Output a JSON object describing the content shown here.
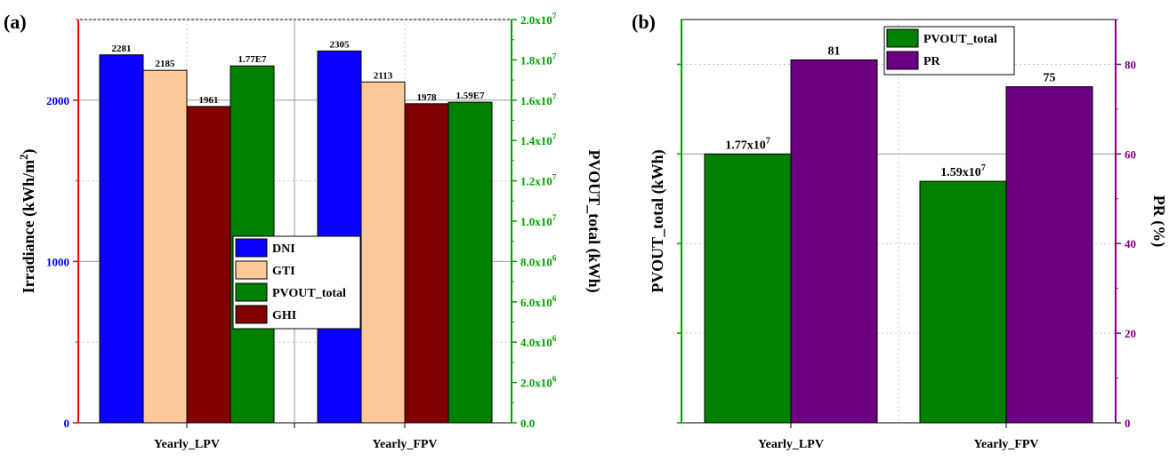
{
  "panels": [
    {
      "label": "(a)",
      "chart_data": {
        "type": "bar",
        "categories": [
          "Yearly_LPV",
          "Yearly_FPV"
        ],
        "series": [
          {
            "name": "DNI",
            "axis": "left",
            "values": [
              2281,
              2305
            ],
            "labels": [
              "2281",
              "2305"
            ],
            "color": "#0b00ff"
          },
          {
            "name": "GTI",
            "axis": "left",
            "values": [
              2185,
              2113
            ],
            "labels": [
              "2185",
              "2113"
            ],
            "color": "#fdc89a"
          },
          {
            "name": "GHI",
            "axis": "left",
            "values": [
              1961,
              1978
            ],
            "labels": [
              "1961",
              "1978"
            ],
            "color": "#800000"
          },
          {
            "name": "PVOUT_total",
            "axis": "right",
            "values": [
              17700000,
              15900000
            ],
            "labels": [
              "1.77E7",
              "1.59E7"
            ],
            "color": "#007f00"
          }
        ],
        "legend_order": [
          "DNI",
          "GTI",
          "PVOUT_total",
          "GHI"
        ],
        "legend_position": "center",
        "ylabel_left": "Irradiance (kWh/m²)",
        "ylabel_right": "PVOUT_total (kWh)",
        "ylim_left": [
          0,
          2500
        ],
        "ylim_right": [
          0,
          20000000
        ],
        "yticks_left": [
          "0",
          "1000",
          "2000"
        ],
        "yticks_right": [
          {
            "m": "0.0",
            "e": ""
          },
          {
            "m": "2.0x10",
            "e": "6"
          },
          {
            "m": "4.0x10",
            "e": "6"
          },
          {
            "m": "6.0x10",
            "e": "6"
          },
          {
            "m": "8.0x10",
            "e": "6"
          },
          {
            "m": "1.0x10",
            "e": "7"
          },
          {
            "m": "1.2x10",
            "e": "7"
          },
          {
            "m": "1.4x10",
            "e": "7"
          },
          {
            "m": "1.6x10",
            "e": "7"
          },
          {
            "m": "1.8x10",
            "e": "7"
          },
          {
            "m": "2.0x10",
            "e": "7"
          }
        ],
        "left_axis_color": "#ff0000",
        "left_tick_color": "#0000ff",
        "right_axis_color": "#00a000",
        "grid": true
      }
    },
    {
      "label": "(b)",
      "chart_data": {
        "type": "bar",
        "categories": [
          "Yearly_LPV",
          "Yearly_FPV"
        ],
        "series": [
          {
            "name": "PVOUT_total",
            "axis": "left",
            "values": [
              17700000,
              15900000
            ],
            "labels": [
              {
                "m": "1.77x10",
                "e": "7"
              },
              {
                "m": "1.59x10",
                "e": "7"
              }
            ],
            "color": "#007f00"
          },
          {
            "name": "PR",
            "axis": "right",
            "values": [
              81,
              75
            ],
            "labels": [
              {
                "m": "81",
                "e": ""
              },
              {
                "m": "75",
                "e": ""
              }
            ],
            "color": "#6a007f"
          }
        ],
        "legend_order": [
          "PVOUT_total",
          "PR"
        ],
        "legend_position": "top-center",
        "ylabel_left": "PVOUT_total (kWh)",
        "ylabel_right": "PR (%)",
        "ylim_right": [
          0,
          90
        ],
        "yticks_right": [
          "0",
          "20",
          "40",
          "60",
          "80"
        ],
        "left_axis_color": "#00a000",
        "right_axis_color": "#800080",
        "grid": true
      }
    }
  ]
}
